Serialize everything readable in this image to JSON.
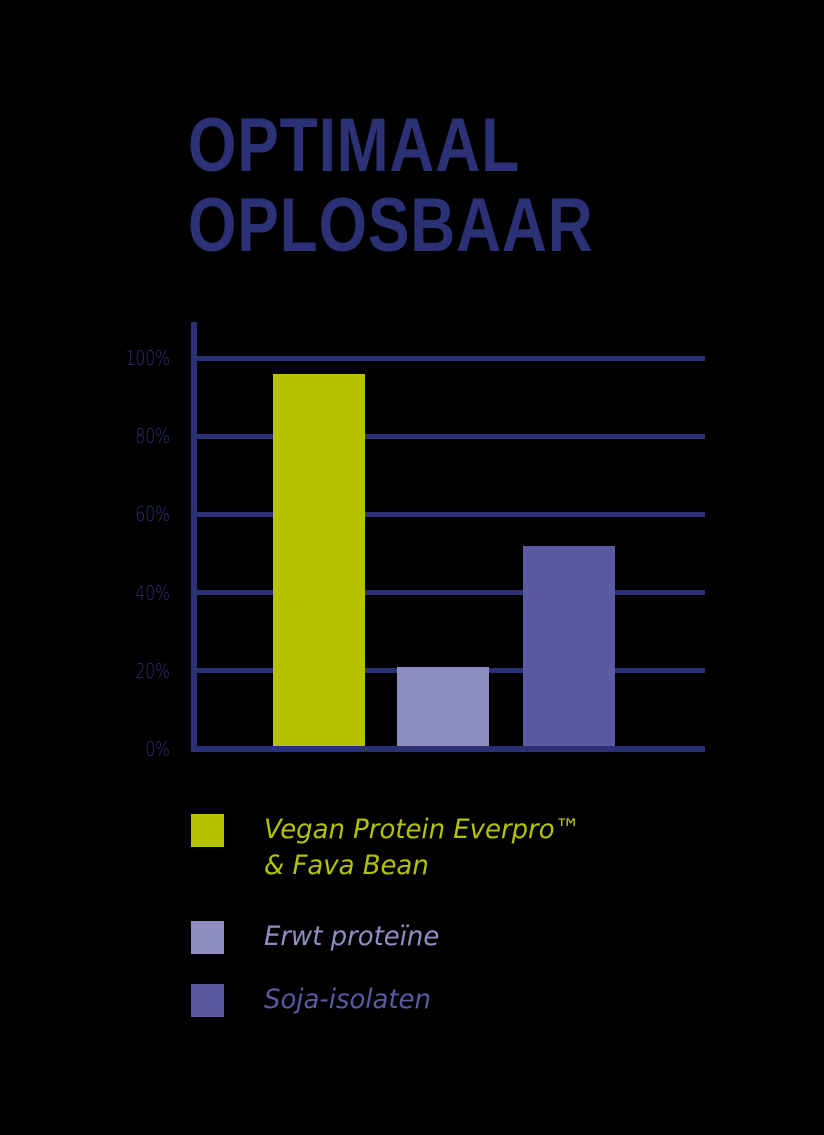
{
  "title": {
    "line1": "OPTIMAAL",
    "line2": "OPLOSBAAR"
  },
  "colors": {
    "navy": "#2B3175",
    "lime": "#B5C200",
    "lavender": "#8E8EC3",
    "soja": "#5A5AA3",
    "background": "#000000"
  },
  "axis": {
    "ticks": [
      "0%",
      "20%",
      "40%",
      "60%",
      "80%",
      "100%"
    ]
  },
  "legend": {
    "items": [
      {
        "label": "Vegan Protein Everpro™\n& Fava Bean",
        "color": "#B5C200"
      },
      {
        "label": "Erwt proteïne",
        "color": "#8E8EC3"
      },
      {
        "label": "Soja-isolaten",
        "color": "#5A5AA3"
      }
    ]
  },
  "chart_data": {
    "type": "bar",
    "title": "OPTIMAAL OPLOSBAAR",
    "categories": [
      "Vegan Protein Everpro™ & Fava Bean",
      "Erwt proteïne",
      "Soja-isolaten"
    ],
    "values": [
      96,
      21,
      52
    ],
    "colors": [
      "#B5C200",
      "#8E8EC3",
      "#5A5AA3"
    ],
    "xlabel": "",
    "ylabel": "",
    "ylim": [
      0,
      100
    ],
    "yticks": [
      "0%",
      "20%",
      "40%",
      "60%",
      "80%",
      "100%"
    ],
    "grid": true,
    "legend_position": "bottom",
    "unit": "%"
  }
}
